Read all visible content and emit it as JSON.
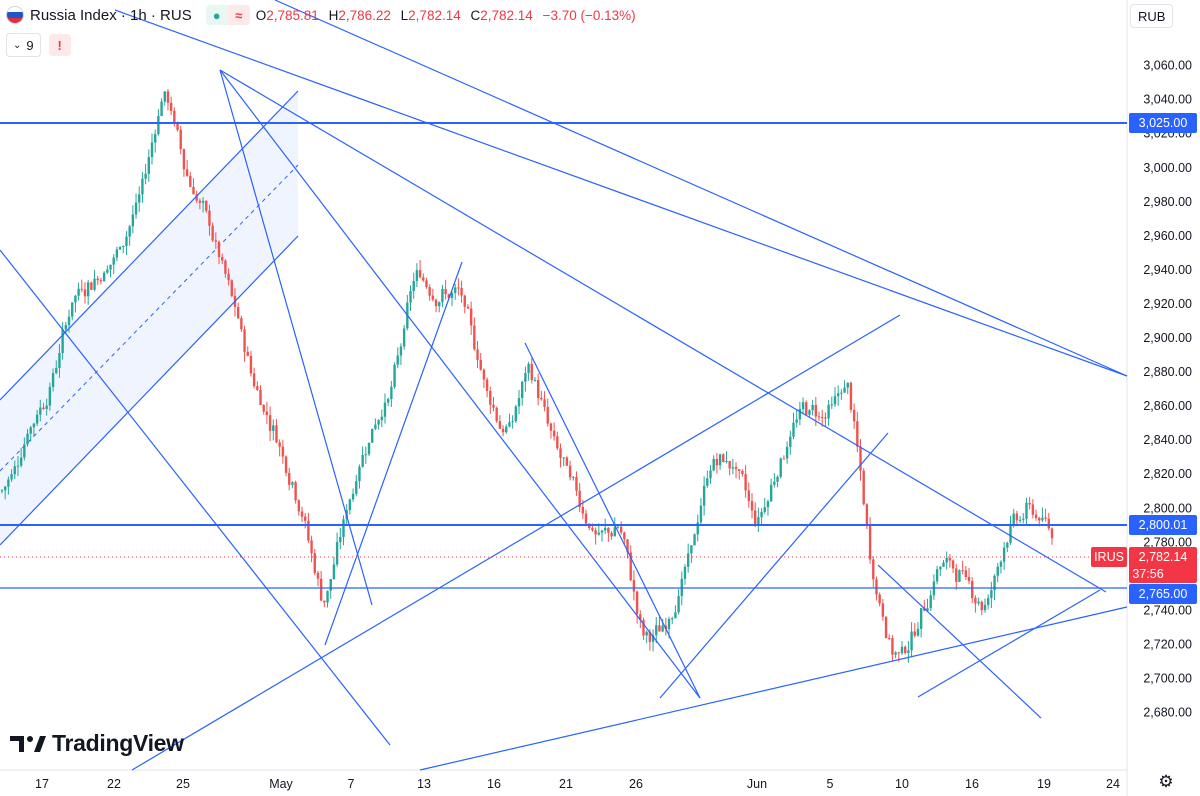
{
  "header": {
    "symbol": "Russia Index · 1h · RUS",
    "ohlc": {
      "o_label": "O",
      "o": "2,785.81",
      "h_label": "H",
      "h": "2,786.22",
      "l_label": "L",
      "l": "2,782.14",
      "c_label": "C",
      "c": "2,782.14",
      "change": "−3.70 (−0.13%)"
    },
    "indicators_count": "9",
    "alert_glyph": "!",
    "currency": "RUB"
  },
  "watermark": "TradingView",
  "colors": {
    "up": "#26a69a",
    "down": "#ef5350",
    "trendline": "#2962ff",
    "level": "#2962ff",
    "label_bg": "#2962ff",
    "price_bg": "#f23645"
  },
  "chart_data": {
    "type": "candlestick",
    "symbol": "IRUS",
    "y_axis": {
      "ticks": [
        "3,060.00",
        "3,040.00",
        "3,020.00",
        "3,000.00",
        "2,980.00",
        "2,960.00",
        "2,940.00",
        "2,920.00",
        "2,900.00",
        "2,880.00",
        "2,860.00",
        "2,840.00",
        "2,820.00",
        "2,800.00",
        "2,780.00",
        "2,760.00",
        "2,740.00",
        "2,720.00",
        "2,700.00",
        "2,680.00"
      ],
      "range": [
        2666,
        3078
      ]
    },
    "x_axis": {
      "ticks": [
        "17",
        "22",
        "25",
        "May",
        "7",
        "13",
        "16",
        "21",
        "26",
        "Jun",
        "5",
        "10",
        "16",
        "19",
        "24"
      ]
    },
    "horizontal_levels": [
      {
        "value": 3025.0,
        "label": "3,025.00"
      },
      {
        "value": 2800.01,
        "label": "2,800.01"
      },
      {
        "value": 2765.0,
        "label": "2,765.00"
      }
    ],
    "last_price": {
      "ticker": "IRUS",
      "value": "2,782.14",
      "countdown": "37:56"
    },
    "price_path": [
      [
        "17",
        2810
      ],
      [
        "19",
        2845
      ],
      [
        "21",
        2870
      ],
      [
        "22",
        2925
      ],
      [
        "23",
        2935
      ],
      [
        "24",
        2950
      ],
      [
        "25",
        2985
      ],
      [
        "26",
        3050
      ],
      [
        "27",
        2995
      ],
      [
        "28",
        2965
      ],
      [
        "29",
        2920
      ],
      [
        "30",
        2870
      ],
      [
        "May 1",
        2840
      ],
      [
        "May 3",
        2800
      ],
      [
        "May 5",
        2740
      ],
      [
        "May 7",
        2800
      ],
      [
        "May 8",
        2845
      ],
      [
        "May 10",
        2870
      ],
      [
        "May 12",
        2940
      ],
      [
        "May 14",
        2925
      ],
      [
        "May 15",
        2925
      ],
      [
        "May 16",
        2875
      ],
      [
        "May 17",
        2840
      ],
      [
        "May 19",
        2885
      ],
      [
        "May 21",
        2840
      ],
      [
        "May 22",
        2810
      ],
      [
        "May 23",
        2780
      ],
      [
        "May 24",
        2790
      ],
      [
        "May 26",
        2720
      ],
      [
        "May 28",
        2730
      ],
      [
        "May 29",
        2770
      ],
      [
        "May 31",
        2830
      ],
      [
        "Jun 2",
        2825
      ],
      [
        "Jun 3",
        2790
      ],
      [
        "Jun 4",
        2830
      ],
      [
        "Jun 5",
        2860
      ],
      [
        "Jun 6",
        2855
      ],
      [
        "Jun 7",
        2875
      ],
      [
        "Jun 8",
        2760
      ],
      [
        "Jun 10",
        2710
      ],
      [
        "Jun 12",
        2730
      ],
      [
        "Jun 14",
        2770
      ],
      [
        "Jun 16",
        2760
      ],
      [
        "Jun 17",
        2740
      ],
      [
        "Jun 18",
        2790
      ],
      [
        "Jun 19",
        2800
      ],
      [
        "Jun 20",
        2782.14
      ]
    ]
  }
}
